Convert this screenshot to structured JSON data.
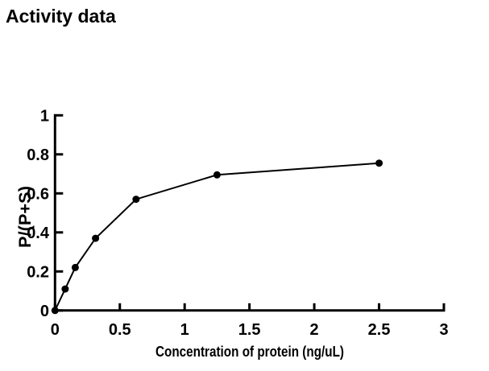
{
  "page": {
    "title": "Activity data"
  },
  "colors": {
    "foreground": "#000000",
    "background": "#ffffff"
  },
  "chart_data": {
    "type": "line",
    "title": "Activity data",
    "xlabel": "Concentration of protein (ng/uL)",
    "ylabel": "P/(P+S)",
    "x": [
      0,
      0.078,
      0.156,
      0.3125,
      0.625,
      1.25,
      2.5
    ],
    "y": [
      0,
      0.11,
      0.22,
      0.37,
      0.57,
      0.695,
      0.755
    ],
    "xlim": [
      0,
      3
    ],
    "ylim": [
      0,
      1
    ],
    "xticks": [
      0,
      0.5,
      1,
      1.5,
      2,
      2.5,
      3
    ],
    "xtick_labels": [
      "0",
      "0.5",
      "1",
      "1.5",
      "2",
      "2.5",
      "3"
    ],
    "yticks": [
      0,
      0.2,
      0.4,
      0.6,
      0.8,
      1
    ],
    "ytick_labels": [
      "0",
      "0.2",
      "0.4",
      "0.6",
      "0.8",
      "1"
    ],
    "grid": false,
    "marker": "filled-circle",
    "line_color": "#000000",
    "marker_color": "#000000",
    "axis_color": "#000000"
  }
}
